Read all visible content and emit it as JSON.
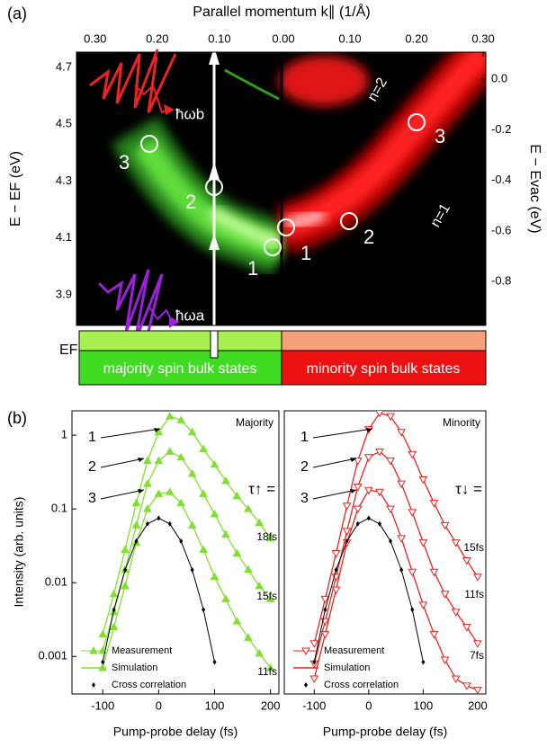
{
  "chart_data": [
    {
      "type": "heatmap",
      "panel_label": "(a)",
      "xlabel": "Parallel momentum k∥ (1/Å)",
      "ylabel": "E − EF (eV)",
      "y2label": "E − Evac (eV)",
      "x_left_lim": [
        0.33,
        0
      ],
      "x_left_ticks": [
        {
          "value": 0.3,
          "label": "0.30"
        },
        {
          "value": 0.2,
          "label": "0.20"
        },
        {
          "value": 0.1,
          "label": "0.10"
        }
      ],
      "x_right_lim": [
        0,
        0.304
      ],
      "x_right_ticks": [
        {
          "value": 0,
          "label": "0.00"
        },
        {
          "value": 0.1,
          "label": "0.10"
        },
        {
          "value": 0.2,
          "label": "0.20"
        },
        {
          "value": 0.3,
          "label": "0.30"
        }
      ],
      "ylim": [
        3.792,
        4.754
      ],
      "yticks": [
        3.9,
        4.1,
        4.3,
        4.5,
        4.7
      ],
      "y2lim": [
        -0.974,
        0.107
      ],
      "y2ticks": [
        {
          "value": 0,
          "label": "0.0"
        },
        -0.2,
        -0.4,
        -0.6,
        -0.8
      ],
      "photon_labels": [
        "ħωb",
        "ħωa"
      ],
      "peaks_left": [
        "3",
        "2",
        "1"
      ],
      "peaks_right": [
        "1",
        "2",
        "3"
      ],
      "bands": [
        "n=2",
        "n=1"
      ],
      "fermi_label": "EF",
      "majority_label": "majority spin bulk states",
      "minority_label": "minority spin bulk states"
    },
    {
      "type": "line",
      "panel_label": "(b)",
      "title": "Majority",
      "xlabel": "Pump-probe delay (fs)",
      "ylabel": "Intensity (arb. units)",
      "log_y": true,
      "xlim": [
        -155,
        215
      ],
      "xticks": [
        -100,
        0,
        100,
        200
      ],
      "ylim": [
        0.00031,
        2.14
      ],
      "yticks": [
        0.001,
        0.01,
        0.1,
        1
      ],
      "marker": "triangle-up-filled",
      "color": "#80e030",
      "x": [
        -100,
        -80,
        -60,
        -40,
        -20,
        0,
        20,
        40,
        60,
        80,
        100,
        120,
        140,
        160,
        180,
        200
      ],
      "series": [
        {
          "name": "1",
          "values": [
            0.002,
            0.007,
            0.028,
            0.12,
            0.45,
            1.1,
            1.8,
            1.6,
            1.1,
            0.65,
            0.4,
            0.24,
            0.15,
            0.1,
            0.065,
            0.04
          ]
        },
        {
          "name": "2",
          "values": [
            0.0012,
            0.004,
            0.015,
            0.06,
            0.22,
            0.45,
            0.6,
            0.5,
            0.3,
            0.16,
            0.085,
            0.045,
            0.025,
            0.015,
            0.009,
            0.006
          ]
        },
        {
          "name": "3",
          "values": [
            0.0007,
            0.0025,
            0.009,
            0.035,
            0.1,
            0.16,
            0.17,
            0.12,
            0.06,
            0.028,
            0.012,
            0.006,
            0.003,
            0.0018,
            0.0011,
            0.0007
          ]
        }
      ],
      "cross_correlation": {
        "x": [
          -100,
          -80,
          -60,
          -40,
          -20,
          0,
          20,
          40,
          60,
          80,
          100
        ],
        "values": [
          0.00084,
          0.0043,
          0.0149,
          0.0366,
          0.0627,
          0.075,
          0.0627,
          0.0366,
          0.0149,
          0.0043,
          0.00084
        ]
      },
      "tau_label": "τ↑ =",
      "fit_labels": [
        "18fs",
        "15fs",
        "11fs"
      ],
      "legend": [
        "Measurement",
        "Simulation",
        "Cross correlation"
      ]
    },
    {
      "type": "line",
      "title": "Minority",
      "xlabel": "Pump-probe delay (fs)",
      "log_y": true,
      "xlim": [
        -155,
        215
      ],
      "xticks": [
        -100,
        0,
        100,
        200
      ],
      "ylim": [
        0.00031,
        2.14
      ],
      "marker": "triangle-down-open",
      "color": "#e8241e",
      "x": [
        -100,
        -80,
        -60,
        -40,
        -20,
        0,
        20,
        40,
        60,
        80,
        100,
        120,
        140,
        160,
        180,
        200
      ],
      "series": [
        {
          "name": "1",
          "values": [
            0.0015,
            0.006,
            0.025,
            0.11,
            0.45,
            1.2,
            2.0,
            1.8,
            1.1,
            0.55,
            0.25,
            0.12,
            0.06,
            0.035,
            0.02,
            0.012
          ]
        },
        {
          "name": "2",
          "values": [
            0.0008,
            0.003,
            0.012,
            0.05,
            0.2,
            0.5,
            0.6,
            0.45,
            0.22,
            0.09,
            0.035,
            0.014,
            0.007,
            0.004,
            0.0025,
            0.0015
          ]
        },
        {
          "name": "3",
          "values": [
            0.0005,
            0.002,
            0.008,
            0.035,
            0.1,
            0.18,
            0.17,
            0.1,
            0.04,
            0.014,
            0.005,
            0.002,
            0.0009,
            0.0005,
            0.0004,
            0.00035
          ]
        }
      ],
      "cross_correlation": {
        "x": [
          -100,
          -80,
          -60,
          -40,
          -20,
          0,
          20,
          40,
          60,
          80,
          100
        ],
        "values": [
          0.00084,
          0.0043,
          0.0149,
          0.0366,
          0.0627,
          0.075,
          0.0627,
          0.0366,
          0.0149,
          0.0043,
          0.00084
        ]
      },
      "tau_label": "τ↓ =",
      "fit_labels": [
        "15fs",
        "11fs",
        "7fs"
      ],
      "legend": [
        "Measurement",
        "Simulation",
        "Cross correlation"
      ]
    }
  ]
}
